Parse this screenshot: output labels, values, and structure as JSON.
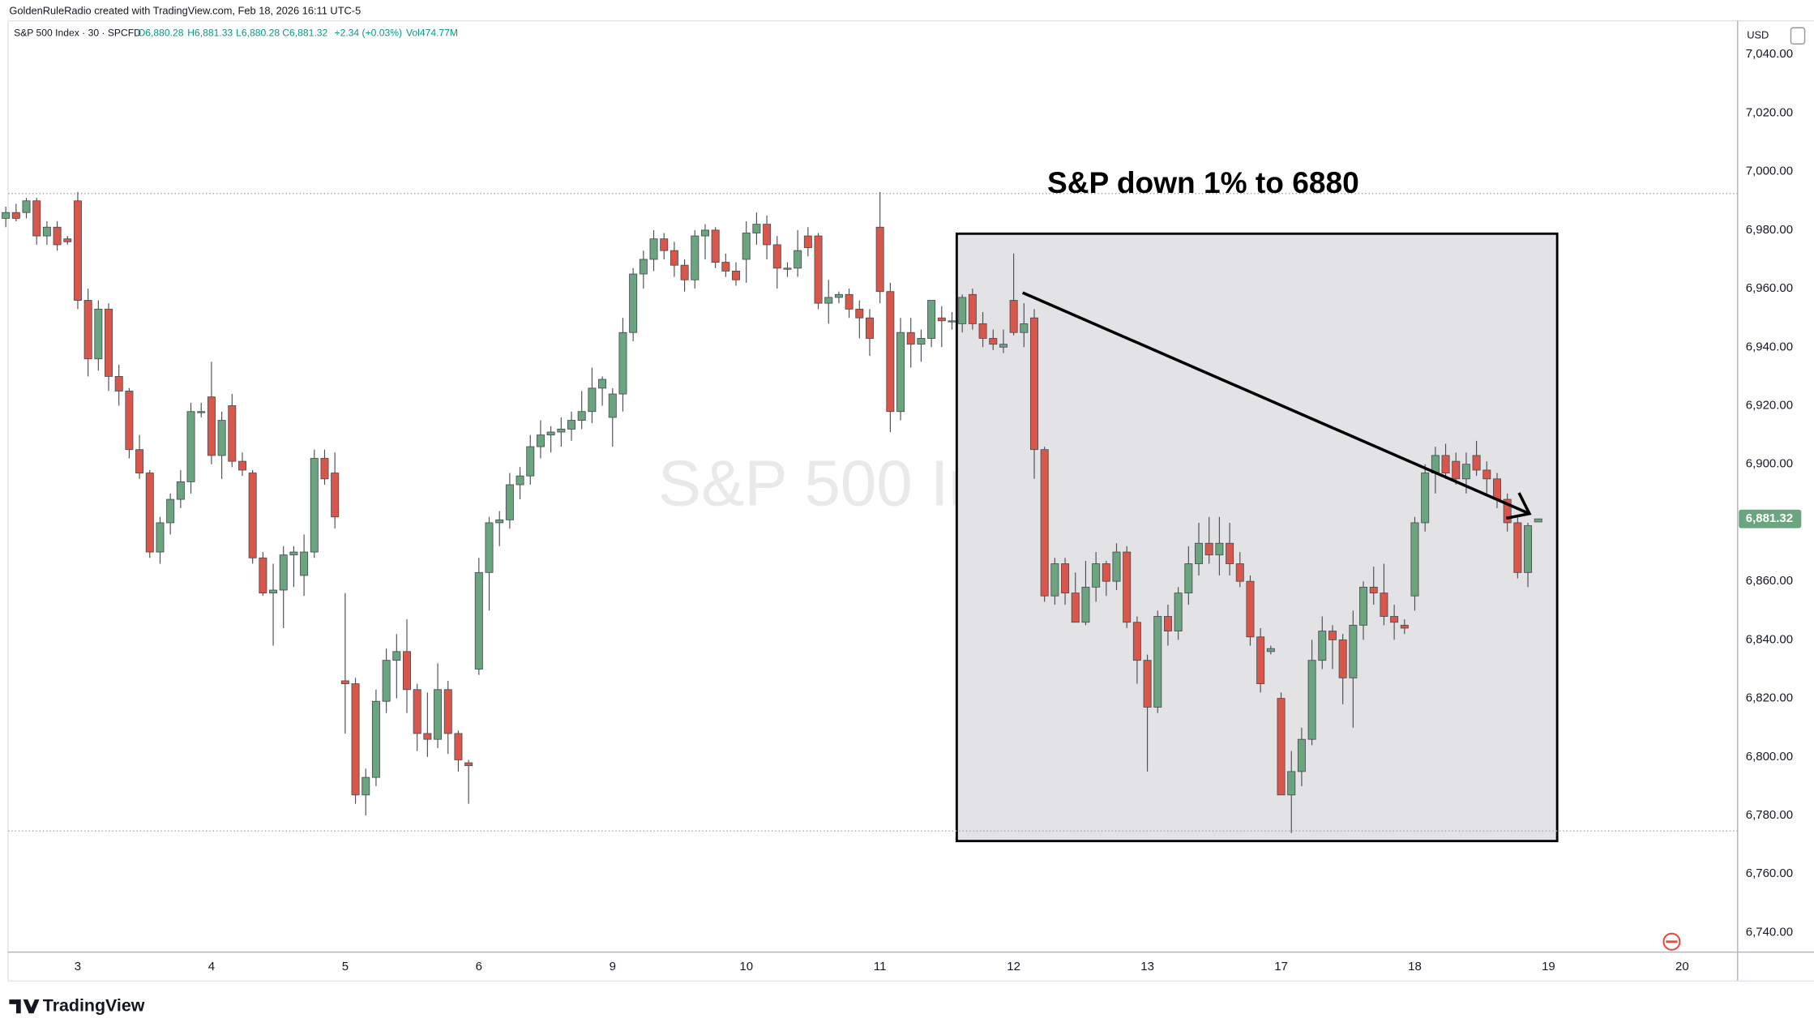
{
  "header": {
    "credit": "GoldenRuleRadio created with TradingView.com, Feb 18, 2026 16:11 UTC-5"
  },
  "footer": {
    "brand": "TradingView"
  },
  "chart_data": {
    "type": "candlestick",
    "legend": {
      "symbol": "S&P 500 Index · 30 · SPCFD",
      "open": "O6,880.28",
      "high": "H6,881.33",
      "low": "L6,880.28",
      "close": "C6,881.32",
      "change": "+2.34 (+0.03%)",
      "volume": "Vol474.77M"
    },
    "watermark": "S&P 500 Index",
    "annotation": "S&P down 1% to 6880",
    "currency": "USD",
    "last_price_label": "6,881.32",
    "up_color": "#6aa57f",
    "down_color": "#d9574a",
    "wick_color": "#4a4d55",
    "reference_lines": [
      6992.5,
      6774.7
    ],
    "ylim": [
      6733.7,
      7051.5
    ],
    "yticks": [
      {
        "value": 6740,
        "label": "6,740.00"
      },
      {
        "value": 6760,
        "label": "6,760.00"
      },
      {
        "value": 6780,
        "label": "6,780.00"
      },
      {
        "value": 6800,
        "label": "6,800.00"
      },
      {
        "value": 6820,
        "label": "6,820.00"
      },
      {
        "value": 6840,
        "label": "6,840.00"
      },
      {
        "value": 6860,
        "label": "6,860.00"
      },
      {
        "value": 6880,
        "label": "6,880.00"
      },
      {
        "value": 6900,
        "label": "6,900.00"
      },
      {
        "value": 6920,
        "label": "6,920.00"
      },
      {
        "value": 6940,
        "label": "6,940.00"
      },
      {
        "value": 6960,
        "label": "6,960.00"
      },
      {
        "value": 6980,
        "label": "6,980.00"
      },
      {
        "value": 7000,
        "label": "7,000.00"
      },
      {
        "value": 7020,
        "label": "7,020.00"
      },
      {
        "value": 7040,
        "label": "7,040.00"
      }
    ],
    "xticks": [
      "3",
      "4",
      "5",
      "6",
      "9",
      "10",
      "11",
      "12",
      "13",
      "17",
      "18",
      "19",
      "20"
    ],
    "open": [
      6984,
      6986,
      6986,
      6990,
      6978,
      6981,
      6977,
      6990,
      6956,
      6936,
      6953,
      6930,
      6925,
      6905,
      6897,
      6870,
      6880,
      6888,
      6894,
      6918,
      6923,
      6903,
      6920,
      6901,
      6897,
      6868,
      6856,
      6857,
      6869,
      6862,
      6870,
      6902,
      6897,
      6826,
      6825,
      6787,
      6793,
      6819,
      6833,
      6836,
      6823,
      6808,
      6806,
      6823,
      6808,
      6798,
      6830,
      6863,
      6880,
      6881,
      6893,
      6896,
      6906,
      6910,
      6911,
      6912,
      6915,
      6918,
      6926,
      6916,
      6924,
      6945,
      6965,
      6970,
      6977,
      6973,
      6968,
      6963,
      6978,
      6980,
      6969,
      6966,
      6970,
      6979,
      6982,
      6975,
      6967,
      6967,
      6978,
      6978,
      6955,
      6957,
      6958,
      6953,
      6950,
      6981,
      6959,
      6918,
      6945,
      6941,
      6943,
      6950,
      6949,
      6948,
      6958,
      6948,
      6943,
      6940,
      6956,
      6945,
      6950,
      6905,
      6855,
      6866,
      6856,
      6846,
      6858,
      6866,
      6860,
      6870,
      6846,
      6833,
      6817,
      6848,
      6843,
      6856,
      6866,
      6873,
      6869,
      6873,
      6866,
      6860,
      6841,
      6836,
      6820,
      6787,
      6795,
      6806,
      6833,
      6843,
      6840,
      6827,
      6845,
      6858,
      6856,
      6848,
      6845,
      6855,
      6880,
      6897,
      6903,
      6901,
      6895,
      6903,
      6898,
      6895,
      6888,
      6880,
      6863,
      6880.28
    ],
    "high": [
      6988,
      6989,
      6991,
      6991,
      6983,
      6983,
      6978,
      6993,
      6960,
      6956,
      6955,
      6934,
      6926,
      6910,
      6898,
      6882,
      6890,
      6898,
      6921,
      6921,
      6935,
      6918,
      6924,
      6904,
      6898,
      6870,
      6866,
      6872,
      6872,
      6876,
      6905,
      6905,
      6904,
      6856,
      6827,
      6796,
      6823,
      6837,
      6842,
      6847,
      6825,
      6822,
      6832,
      6826,
      6809,
      6799,
      6868,
      6882,
      6884,
      6897,
      6899,
      6910,
      6915,
      6913,
      6916,
      6918,
      6925,
      6933,
      6930,
      6926,
      6950,
      6967,
      6973,
      6980,
      6979,
      6976,
      6970,
      6980,
      6982,
      6981,
      6972,
      6969,
      6983,
      6986,
      6985,
      6978,
      6969,
      6980,
      6981,
      6979,
      6963,
      6959,
      6960,
      6956,
      6953,
      6993,
      6962,
      6950,
      6950,
      6946,
      6956,
      6954,
      6952,
      6958,
      6960,
      6952,
      6946,
      6946,
      6972,
      6955,
      6953,
      6906,
      6868,
      6868,
      6863,
      6867,
      6870,
      6867,
      6873,
      6872,
      6848,
      6835,
      6850,
      6852,
      6858,
      6872,
      6880,
      6882,
      6882,
      6880,
      6870,
      6862,
      6844,
      6838,
      6822,
      6802,
      6810,
      6840,
      6848,
      6845,
      6842,
      6850,
      6860,
      6865,
      6866,
      6852,
      6847,
      6882,
      6900,
      6906,
      6907,
      6904,
      6904,
      6908,
      6901,
      6897,
      6890,
      6882,
      6880,
      6881.33
    ],
    "low": [
      6981,
      6983,
      6984,
      6975,
      6975,
      6973,
      6975,
      6953,
      6930,
      6932,
      6925,
      6920,
      6902,
      6895,
      6868,
      6866,
      6876,
      6885,
      6890,
      6916,
      6900,
      6895,
      6899,
      6896,
      6866,
      6855,
      6838,
      6844,
      6858,
      6855,
      6868,
      6893,
      6878,
      6808,
      6784,
      6780,
      6790,
      6815,
      6820,
      6815,
      6802,
      6800,
      6803,
      6801,
      6795,
      6784,
      6828,
      6850,
      6872,
      6878,
      6888,
      6893,
      6902,
      6904,
      6906,
      6908,
      6912,
      6914,
      6920,
      6906,
      6918,
      6942,
      6960,
      6966,
      6970,
      6964,
      6959,
      6960,
      6970,
      6967,
      6964,
      6961,
      6962,
      6975,
      6970,
      6960,
      6964,
      6964,
      6971,
      6953,
      6948,
      6955,
      6950,
      6943,
      6937,
      6955,
      6911,
      6915,
      6933,
      6935,
      6940,
      6940,
      6946,
      6945,
      6946,
      6940,
      6939,
      6938,
      6944,
      6940,
      6895,
      6853,
      6852,
      6852,
      6846,
      6845,
      6853,
      6855,
      6857,
      6844,
      6825,
      6795,
      6815,
      6838,
      6840,
      6852,
      6862,
      6866,
      6862,
      6862,
      6858,
      6838,
      6822,
      6835,
      6787,
      6774,
      6790,
      6804,
      6830,
      6830,
      6818,
      6810,
      6840,
      6852,
      6845,
      6840,
      6842,
      6850,
      6877,
      6890,
      6895,
      6893,
      6890,
      6896,
      6890,
      6885,
      6877,
      6861,
      6858,
      6880.28
    ],
    "close": [
      6986,
      6984,
      6990,
      6978,
      6981,
      6975,
      6976,
      6956,
      6936,
      6953,
      6930,
      6925,
      6905,
      6897,
      6870,
      6880,
      6888,
      6894,
      6918,
      6918,
      6903,
      6915,
      6901,
      6898,
      6868,
      6856,
      6857,
      6869,
      6870,
      6870,
      6902,
      6895,
      6882,
      6825,
      6787,
      6793,
      6819,
      6833,
      6836,
      6823,
      6808,
      6806,
      6823,
      6808,
      6799,
      6797,
      6863,
      6880,
      6881,
      6893,
      6896,
      6906,
      6910,
      6911,
      6912,
      6915,
      6918,
      6926,
      6929,
      6924,
      6945,
      6965,
      6970,
      6977,
      6973,
      6968,
      6963,
      6978,
      6980,
      6969,
      6966,
      6963,
      6979,
      6982,
      6975,
      6967,
      6967,
      6973,
      6974,
      6955,
      6957,
      6958,
      6953,
      6950,
      6943,
      6959,
      6918,
      6945,
      6941,
      6943,
      6956,
      6949,
      6949,
      6957,
      6948,
      6943,
      6941,
      6941,
      6945,
      6948,
      6905,
      6855,
      6866,
      6856,
      6846,
      6858,
      6866,
      6860,
      6870,
      6846,
      6833,
      6817,
      6848,
      6843,
      6856,
      6866,
      6873,
      6869,
      6873,
      6866,
      6860,
      6841,
      6825,
      6837,
      6787,
      6795,
      6806,
      6833,
      6843,
      6840,
      6827,
      6845,
      6858,
      6856,
      6848,
      6846,
      6844,
      6880,
      6897,
      6903,
      6897,
      6895,
      6900,
      6898,
      6895,
      6888,
      6880,
      6863,
      6879,
      6881.32
    ]
  }
}
